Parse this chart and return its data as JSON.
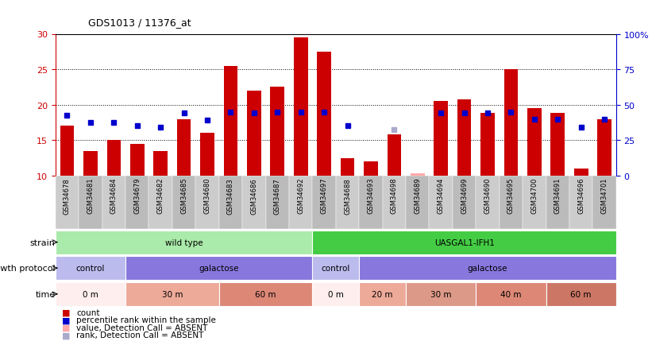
{
  "title": "GDS1013 / 11376_at",
  "samples": [
    "GSM34678",
    "GSM34681",
    "GSM34684",
    "GSM34679",
    "GSM34682",
    "GSM34685",
    "GSM34680",
    "GSM34683",
    "GSM34686",
    "GSM34687",
    "GSM34692",
    "GSM34697",
    "GSM34688",
    "GSM34693",
    "GSM34698",
    "GSM34689",
    "GSM34694",
    "GSM34699",
    "GSM34690",
    "GSM34695",
    "GSM34700",
    "GSM34691",
    "GSM34696",
    "GSM34701"
  ],
  "count_values": [
    17.0,
    13.5,
    15.0,
    14.5,
    13.5,
    18.0,
    16.0,
    25.5,
    22.0,
    22.5,
    29.5,
    27.5,
    12.5,
    12.0,
    15.8,
    10.5,
    20.5,
    20.8,
    18.8,
    25.0,
    19.5,
    18.8,
    11.0,
    18.0
  ],
  "percentile_values": [
    18.5,
    17.5,
    17.5,
    17.0,
    16.8,
    18.8,
    17.8,
    19.0,
    18.8,
    19.0,
    19.0,
    19.0,
    17.0,
    null,
    17.8,
    null,
    18.8,
    18.8,
    18.8,
    19.0,
    18.0,
    18.0,
    16.8,
    18.0
  ],
  "absent_count": [
    null,
    null,
    null,
    null,
    null,
    null,
    null,
    null,
    null,
    null,
    null,
    null,
    null,
    null,
    null,
    10.3,
    null,
    null,
    null,
    null,
    null,
    null,
    null,
    null
  ],
  "absent_rank": [
    null,
    null,
    null,
    null,
    null,
    null,
    null,
    null,
    null,
    null,
    null,
    null,
    null,
    null,
    16.5,
    null,
    null,
    null,
    null,
    null,
    null,
    null,
    null,
    null
  ],
  "ylim_left": [
    10,
    30
  ],
  "ylim_right": [
    0,
    100
  ],
  "yticks_left": [
    10,
    15,
    20,
    25,
    30
  ],
  "yticks_right": [
    0,
    25,
    50,
    75,
    100
  ],
  "ytick_labels_right": [
    "0",
    "25",
    "50",
    "75",
    "100%"
  ],
  "bar_color": "#cc0000",
  "percentile_color": "#0000cc",
  "absent_count_color": "#ffaaaa",
  "absent_rank_color": "#aaaacc",
  "axis_left_color": "#cc0000",
  "axis_right_color": "#0000cc",
  "strain_groups": [
    {
      "label": "wild type",
      "start": 0,
      "end": 11,
      "color": "#aaeaaa"
    },
    {
      "label": "UASGAL1-IFH1",
      "start": 11,
      "end": 24,
      "color": "#44cc44"
    }
  ],
  "protocol_groups": [
    {
      "label": "control",
      "start": 0,
      "end": 3,
      "color": "#bbbbee"
    },
    {
      "label": "galactose",
      "start": 3,
      "end": 11,
      "color": "#8877dd"
    },
    {
      "label": "control",
      "start": 11,
      "end": 13,
      "color": "#bbbbee"
    },
    {
      "label": "galactose",
      "start": 13,
      "end": 24,
      "color": "#8877dd"
    }
  ],
  "time_groups": [
    {
      "label": "0 m",
      "start": 0,
      "end": 3,
      "color": "#ffeeee"
    },
    {
      "label": "30 m",
      "start": 3,
      "end": 7,
      "color": "#eeaa99"
    },
    {
      "label": "60 m",
      "start": 7,
      "end": 11,
      "color": "#dd8877"
    },
    {
      "label": "0 m",
      "start": 11,
      "end": 13,
      "color": "#ffeeee"
    },
    {
      "label": "20 m",
      "start": 13,
      "end": 15,
      "color": "#eeaa99"
    },
    {
      "label": "30 m",
      "start": 15,
      "end": 18,
      "color": "#dd9988"
    },
    {
      "label": "40 m",
      "start": 18,
      "end": 21,
      "color": "#dd8877"
    },
    {
      "label": "60 m",
      "start": 21,
      "end": 24,
      "color": "#cc7766"
    }
  ],
  "legend_items": [
    {
      "label": "count",
      "color": "#cc0000"
    },
    {
      "label": "percentile rank within the sample",
      "color": "#0000cc"
    },
    {
      "label": "value, Detection Call = ABSENT",
      "color": "#ffaaaa"
    },
    {
      "label": "rank, Detection Call = ABSENT",
      "color": "#aaaacc"
    }
  ],
  "tick_bg_colors": [
    "#cccccc",
    "#bbbbbb"
  ]
}
